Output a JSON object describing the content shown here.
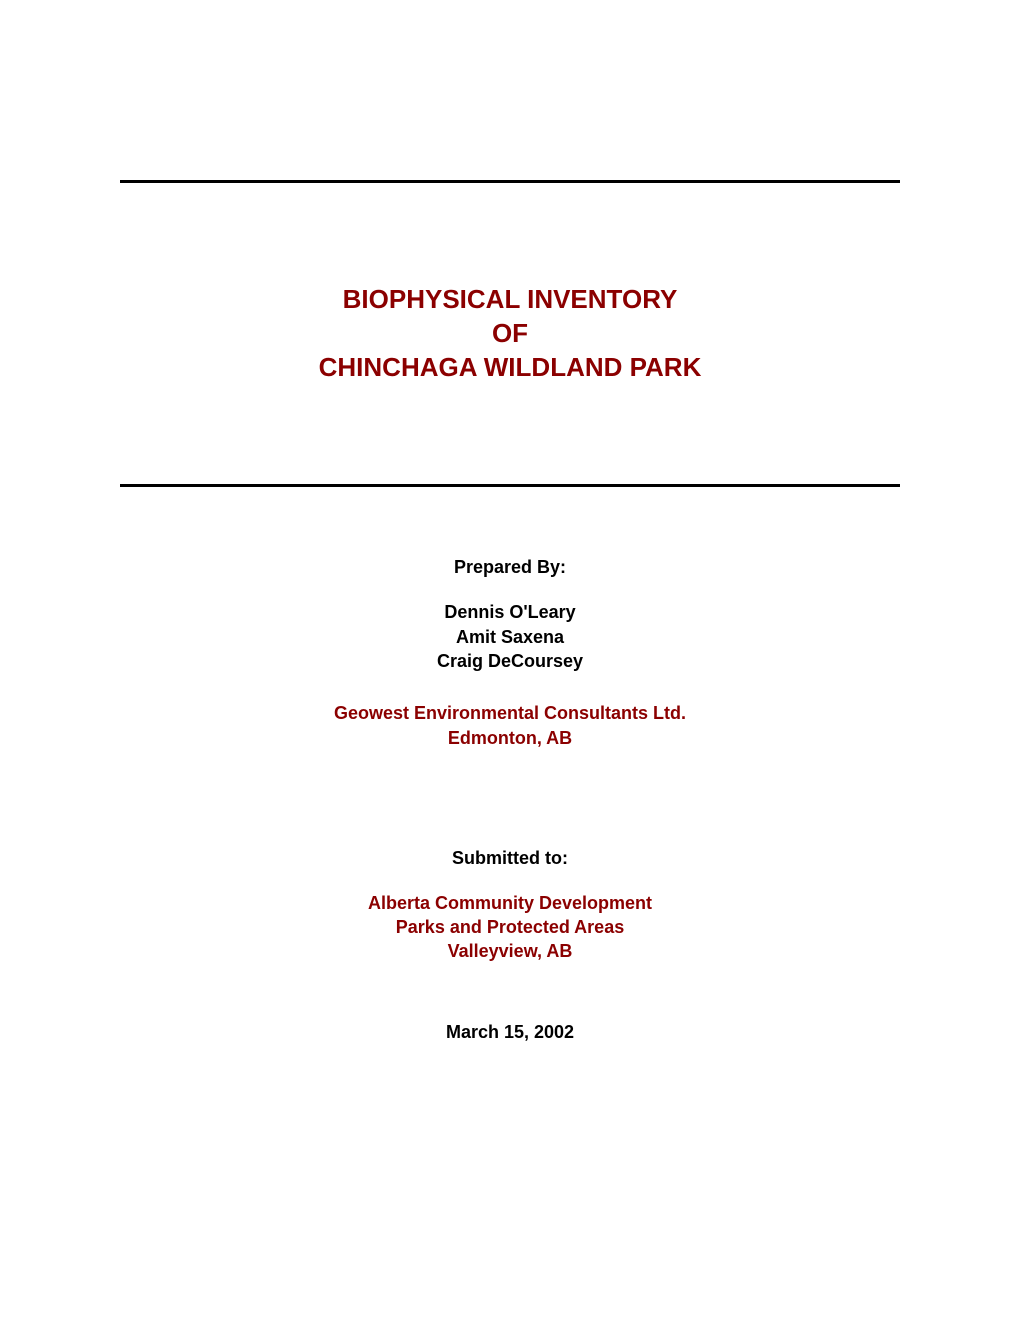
{
  "colors": {
    "title_color": "#8b0000",
    "text_color": "#000000",
    "rule_color": "#000000",
    "background": "#ffffff"
  },
  "typography": {
    "title_fontsize": 26,
    "body_fontsize": 18,
    "font_family": "Arial"
  },
  "title": {
    "line1": "BIOPHYSICAL INVENTORY",
    "line2": "OF",
    "line3": "CHINCHAGA WILDLAND PARK"
  },
  "prepared_by": {
    "label": "Prepared By:",
    "authors": [
      "Dennis O'Leary",
      "Amit Saxena",
      "Craig DeCoursey"
    ],
    "org1": "Geowest Environmental Consultants Ltd.",
    "org2": "Edmonton, AB"
  },
  "submitted_to": {
    "label": "Submitted to:",
    "org1": "Alberta Community Development",
    "org2": "Parks and Protected Areas",
    "org3": "Valleyview, AB"
  },
  "date": "March 15, 2002"
}
